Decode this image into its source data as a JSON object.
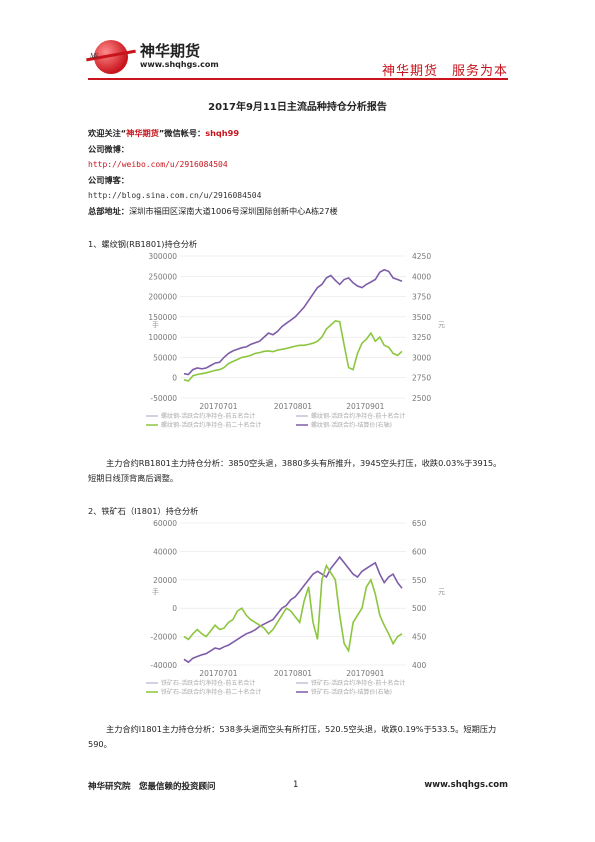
{
  "header": {
    "logo_small": "Mi",
    "logo_title": "神华期货",
    "logo_url": "www.shqhgs.com",
    "slogan": "神华期货　服务为本"
  },
  "title": "2017年9月11日主流品种持仓分析报告",
  "info": {
    "wechat_prefix": "欢迎关注“",
    "wechat_brand": "神华期货",
    "wechat_mid": "”微信帐号：",
    "wechat_id": "shqh99",
    "weibo_label": "公司微博：",
    "weibo_url": "http://weibo.com/u/2916084504",
    "blog_label": "公司博客：",
    "blog_url": "http://blog.sina.com.cn/u/2916084504",
    "addr_label": "总部地址：",
    "addr": "深圳市福田区深南大道1006号深圳国际创新中心A栋27楼"
  },
  "sections": [
    {
      "heading": "1、螺纹钢(RB1801)持仓分析",
      "paragraph": "主力合约RB1801主力持仓分析：3850空头退，3880多头有所推升，3945空头打压，收跌0.03%于3915。短期日线顶背离后调整。"
    },
    {
      "heading": "2、铁矿石（I1801）持仓分析",
      "paragraph": "主力合约I1801主力持仓分析：538多头退而空头有所打压，520.5空头退，收跌0.19%于533.5。短期压力590。"
    }
  ],
  "chart_data": [
    {
      "type": "line",
      "ylabel_left": "手",
      "ylabel_right": "元",
      "yticks_left": [
        "300000",
        "250000",
        "200000",
        "150000",
        "100000",
        "50000",
        "0",
        "-50000"
      ],
      "yticks_right": [
        "4250",
        "4000",
        "3750",
        "3500",
        "3250",
        "3000",
        "2750",
        "2500"
      ],
      "ylim_left": [
        -50000,
        300000
      ],
      "ylim_right": [
        2500,
        4250
      ],
      "xticks": [
        "20170701",
        "20170801",
        "20170901"
      ],
      "legend": [
        "螺纹钢-活跃合约净持仓-前五名合计",
        "螺纹钢-活跃合约净持仓-前十名合计",
        "螺纹钢-活跃合约净持仓-前二十名合计",
        "螺纹钢-活跃合约-结算价(右轴)"
      ],
      "series": [
        {
          "axis": "right",
          "color": "#7e5ca8",
          "values": [
            2800,
            2790,
            2850,
            2870,
            2860,
            2870,
            2900,
            2930,
            2940,
            3000,
            3050,
            3080,
            3100,
            3120,
            3130,
            3160,
            3180,
            3200,
            3250,
            3300,
            3280,
            3320,
            3380,
            3420,
            3460,
            3500,
            3560,
            3620,
            3700,
            3780,
            3860,
            3900,
            3980,
            4010,
            3950,
            3900,
            3960,
            3980,
            3920,
            3880,
            3860,
            3900,
            3930,
            3960,
            4050,
            4080,
            4060,
            3980,
            3960,
            3940
          ]
        },
        {
          "axis": "left",
          "color": "#8cc63e",
          "values": [
            -5000,
            -8000,
            5000,
            8000,
            10000,
            12000,
            15000,
            18000,
            20000,
            25000,
            35000,
            40000,
            45000,
            50000,
            52000,
            55000,
            60000,
            62000,
            65000,
            66000,
            64000,
            68000,
            70000,
            72000,
            75000,
            78000,
            80000,
            80000,
            82000,
            85000,
            90000,
            100000,
            120000,
            130000,
            140000,
            138000,
            80000,
            25000,
            20000,
            60000,
            85000,
            95000,
            110000,
            90000,
            100000,
            80000,
            75000,
            60000,
            55000,
            65000
          ]
        }
      ]
    },
    {
      "type": "line",
      "ylabel_left": "手",
      "ylabel_right": "元",
      "yticks_left": [
        "60000",
        "40000",
        "20000",
        "0",
        "-20000",
        "-40000"
      ],
      "yticks_right": [
        "650",
        "600",
        "550",
        "500",
        "450",
        "400"
      ],
      "ylim_left": [
        -40000,
        60000
      ],
      "ylim_right": [
        400,
        650
      ],
      "xticks": [
        "20170701",
        "20170801",
        "20170901"
      ],
      "legend": [
        "铁矿石-活跃合约净持仓-前五名合计",
        "铁矿石-活跃合约净持仓-前十名合计",
        "铁矿石-活跃合约净持仓-前二十名合计",
        "铁矿石-活跃合约-结算价(右轴)"
      ],
      "series": [
        {
          "axis": "right",
          "color": "#7e5ca8",
          "values": [
            410,
            405,
            412,
            415,
            418,
            420,
            425,
            430,
            428,
            432,
            435,
            440,
            445,
            450,
            455,
            458,
            462,
            468,
            472,
            476,
            480,
            490,
            500,
            505,
            515,
            520,
            530,
            540,
            550,
            560,
            565,
            560,
            555,
            570,
            580,
            590,
            580,
            570,
            560,
            555,
            565,
            570,
            575,
            580,
            560,
            545,
            555,
            560,
            545,
            535
          ]
        },
        {
          "axis": "left",
          "color": "#8cc63e",
          "values": [
            -20000,
            -22000,
            -18000,
            -15000,
            -18000,
            -20000,
            -16000,
            -12000,
            -15000,
            -14000,
            -10000,
            -8000,
            -2000,
            0,
            -5000,
            -8000,
            -10000,
            -12000,
            -14000,
            -18000,
            -15000,
            -10000,
            -5000,
            0,
            -2000,
            -6000,
            -10000,
            5000,
            15000,
            -10000,
            -22000,
            20000,
            30000,
            25000,
            20000,
            -5000,
            -25000,
            -30000,
            -10000,
            -5000,
            0,
            15000,
            20000,
            10000,
            -5000,
            -12000,
            -18000,
            -25000,
            -20000,
            -18000
          ]
        }
      ]
    }
  ],
  "footer": {
    "left": "神华研究院　您最信赖的投资顾问",
    "page": "1",
    "right": "www.shqhgs.com"
  }
}
